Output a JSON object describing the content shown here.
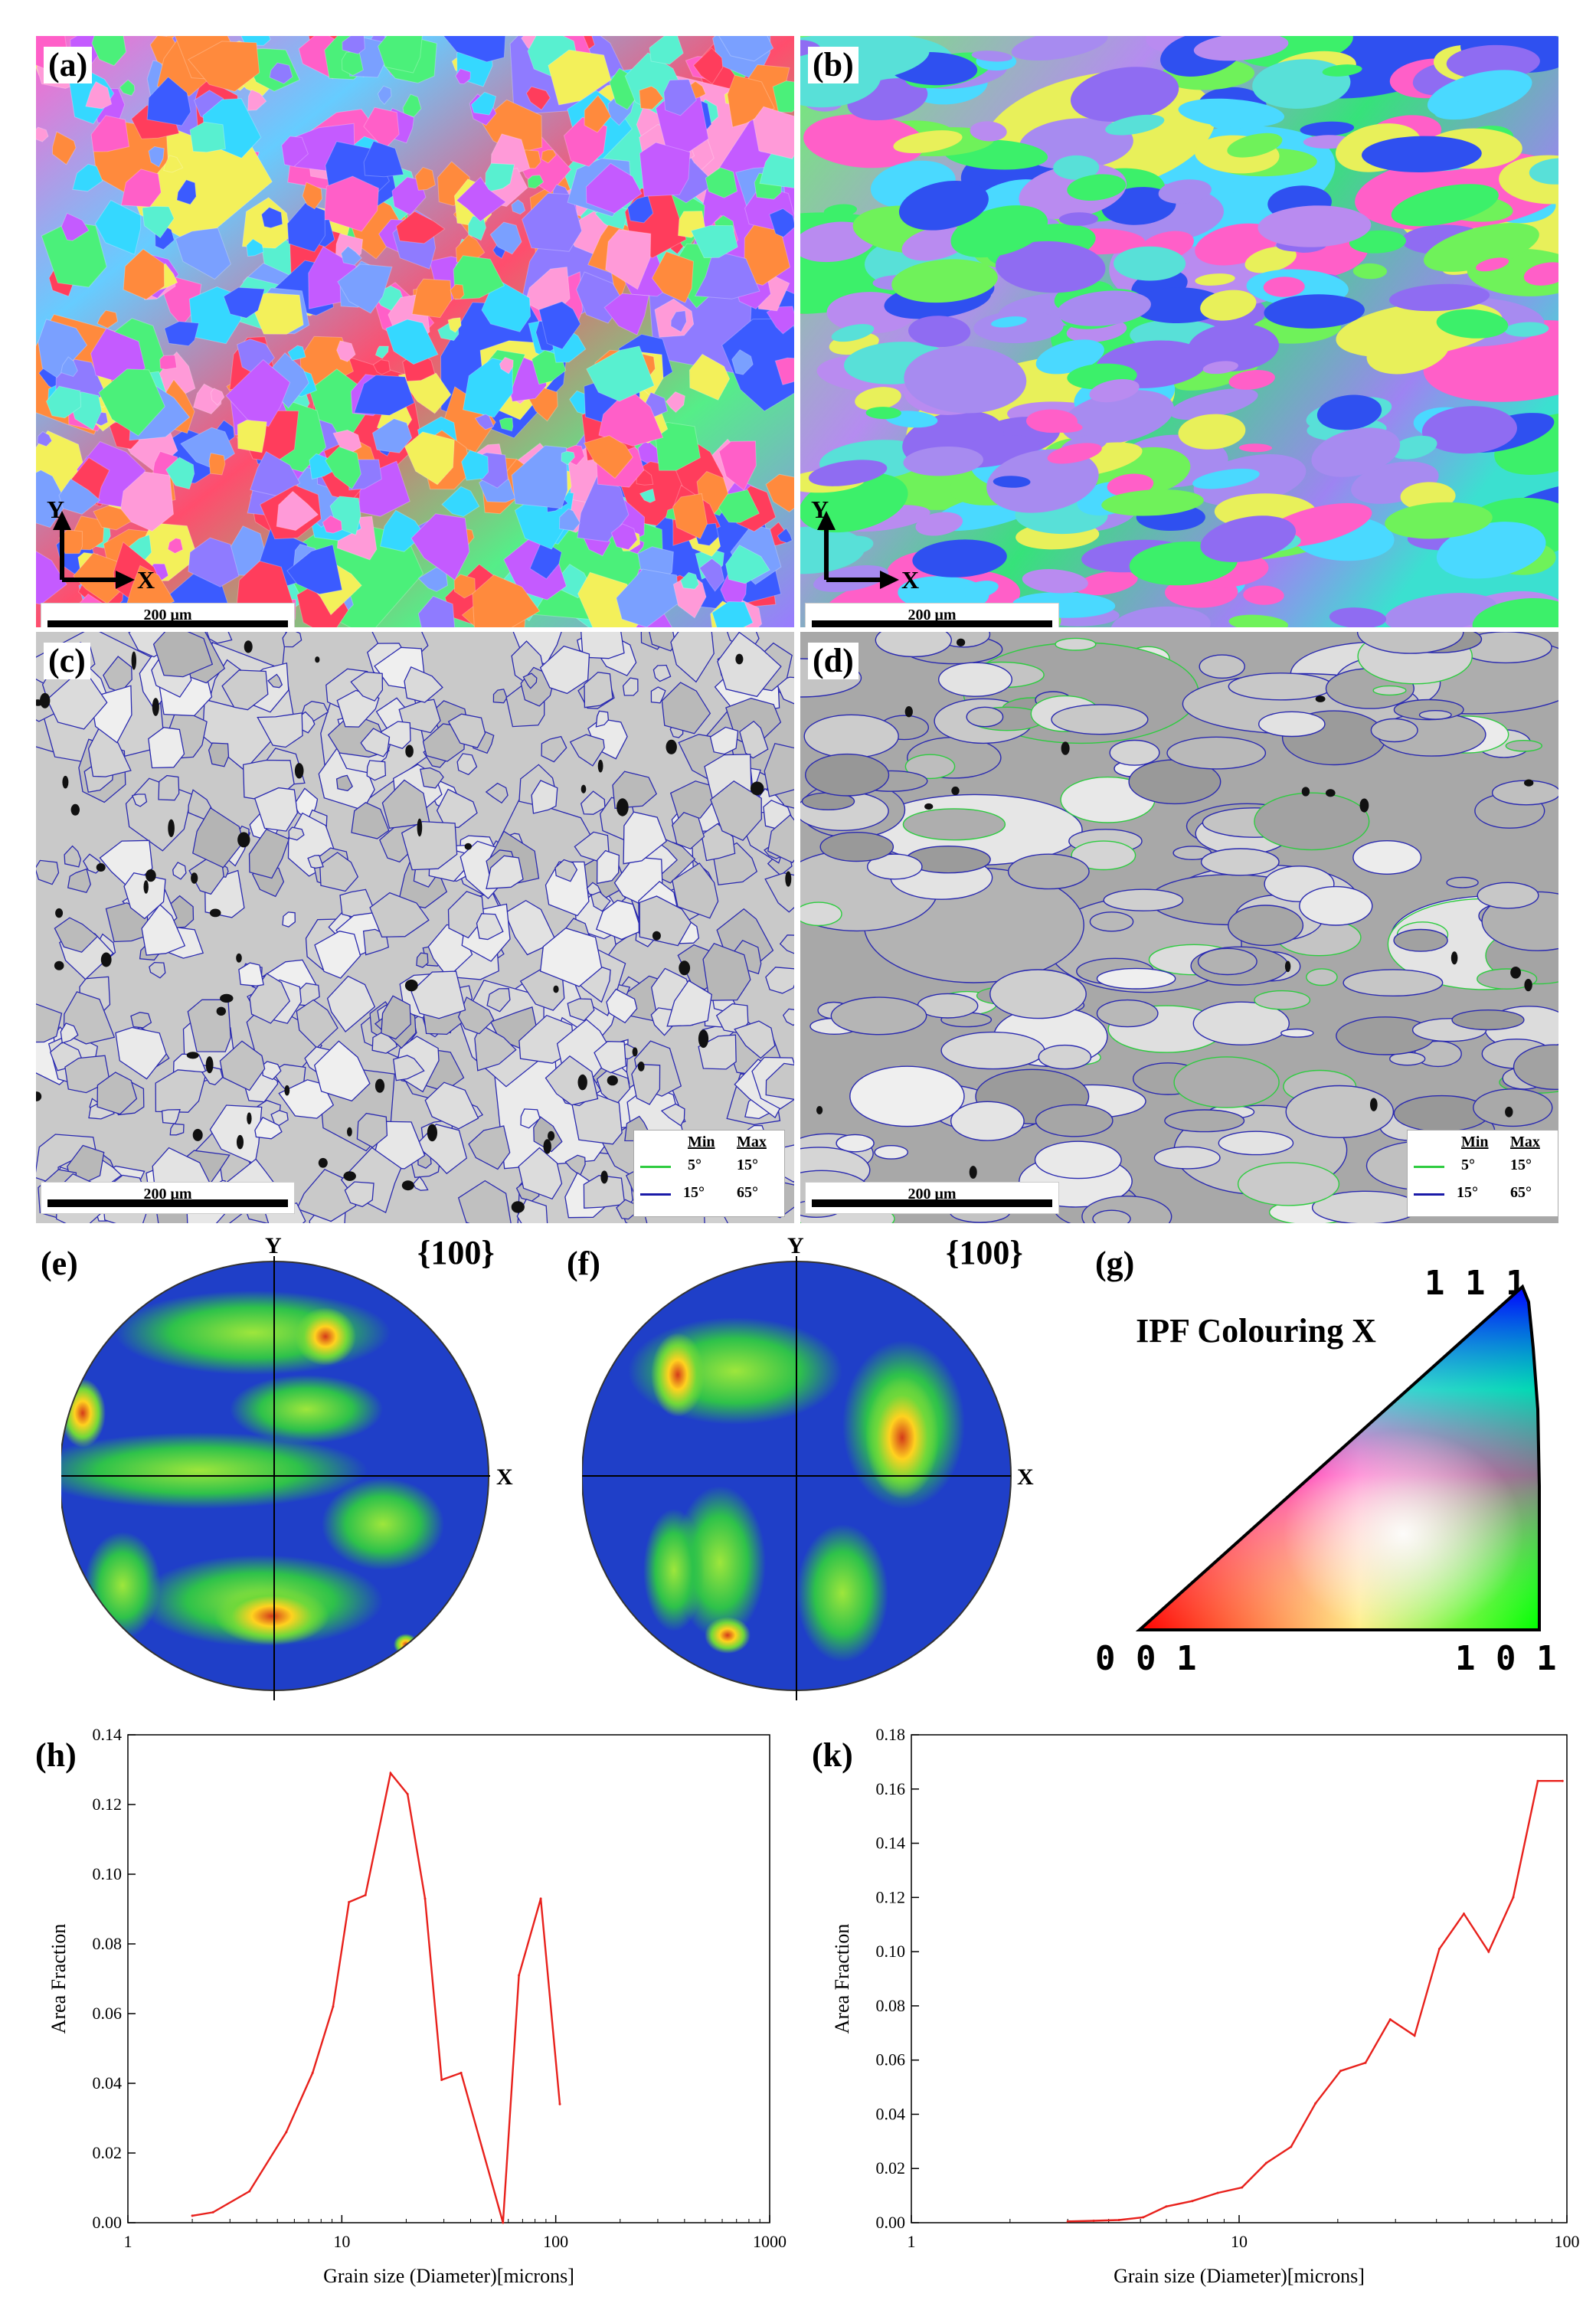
{
  "panels": {
    "a": {
      "label": "(a)",
      "scale": "200 μm",
      "axis_y": "Y",
      "axis_x": "X"
    },
    "b": {
      "label": "(b)",
      "scale": "200 μm",
      "axis_y": "Y",
      "axis_x": "X"
    },
    "c": {
      "label": "(c)",
      "scale": "200 μm",
      "legend": {
        "min_header": "Min",
        "max_header": "Max",
        "rows": [
          {
            "min": "5°",
            "max": "15°",
            "color": "#2ecc40"
          },
          {
            "min": "15°",
            "max": "65°",
            "color": "#1a1aa8"
          }
        ]
      }
    },
    "d": {
      "label": "(d)",
      "scale": "200 μm",
      "legend": {
        "min_header": "Min",
        "max_header": "Max",
        "rows": [
          {
            "min": "5°",
            "max": "15°",
            "color": "#2ecc40"
          },
          {
            "min": "15°",
            "max": "65°",
            "color": "#1a1aa8"
          }
        ]
      }
    },
    "e": {
      "label": "(e)",
      "plane": "{100}",
      "axis_y": "Y",
      "axis_x": "X"
    },
    "f": {
      "label": "(f)",
      "plane": "{100}",
      "axis_y": "Y",
      "axis_x": "X"
    },
    "g": {
      "label": "(g)",
      "title": "IPF Colouring X",
      "corner_111": "1 1 1",
      "corner_001": "0 0 1",
      "corner_101": "1 0 1"
    }
  },
  "chart_data": [
    {
      "type": "line",
      "label": "(h)",
      "xscale": "log",
      "xlim": [
        1,
        1000
      ],
      "ylim": [
        0,
        0.14
      ],
      "xlabel": "Grain size (Diameter)[microns]",
      "ylabel": "Area Fraction",
      "xticks": [
        "1",
        "10",
        "100",
        "1000"
      ],
      "yticks": [
        "0.00",
        "0.02",
        "0.04",
        "0.06",
        "0.08",
        "0.10",
        "0.12",
        "0.14"
      ],
      "color": "#e8211c",
      "x": [
        2,
        2.5,
        3.7,
        5.5,
        7.3,
        9.1,
        10.8,
        12.9,
        16.9,
        20.3,
        24.5,
        29.3,
        36.1,
        56.7,
        67.3,
        85.1,
        104.5
      ],
      "y": [
        0.002,
        0.003,
        0.009,
        0.026,
        0.043,
        0.062,
        0.092,
        0.094,
        0.129,
        0.123,
        0.093,
        0.041,
        0.043,
        0.0,
        0.071,
        0.093,
        0.034
      ]
    },
    {
      "type": "line",
      "label": "(k)",
      "xscale": "log",
      "xlim": [
        1,
        100
      ],
      "ylim": [
        0,
        0.18
      ],
      "xlabel": "Grain size (Diameter)[microns]",
      "ylabel": "Area Fraction",
      "xticks": [
        "1",
        "10",
        "100"
      ],
      "yticks": [
        "0.00",
        "0.02",
        "0.04",
        "0.06",
        "0.08",
        "0.10",
        "0.12",
        "0.14",
        "0.16",
        "0.18"
      ],
      "color": "#e8211c",
      "x": [
        3.0,
        3.6,
        4.3,
        5.1,
        6.0,
        7.2,
        8.6,
        10.2,
        12.1,
        14.4,
        17.1,
        20.4,
        24.3,
        28.9,
        34.3,
        40.8,
        48.5,
        57.7,
        68.6,
        81.5,
        97
      ],
      "y": [
        0.0005,
        0.0007,
        0.001,
        0.002,
        0.006,
        0.008,
        0.011,
        0.013,
        0.022,
        0.028,
        0.044,
        0.056,
        0.059,
        0.075,
        0.069,
        0.101,
        0.114,
        0.1,
        0.12,
        0.163,
        0.163
      ]
    }
  ]
}
